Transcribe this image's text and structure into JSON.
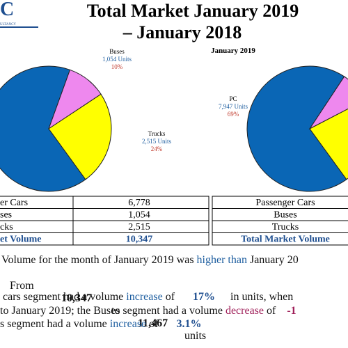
{
  "header": {
    "logo_text": "C",
    "logo_subtext": "ULTANCY",
    "title_line1": "Total Market January 2019",
    "title_line2": "– January 2018"
  },
  "chart_data": [
    {
      "type": "pie",
      "categories": [
        null,
        "Buses",
        "Trucks"
      ],
      "values": [
        6778,
        1054,
        2515
      ],
      "value_labels": [
        null,
        "1,054 Units",
        "2,515 Units"
      ],
      "percent_labels": [
        null,
        "10%",
        "24%"
      ],
      "colors": [
        "#0a66b5",
        "#ee88ee",
        "#ffff00"
      ]
    },
    {
      "type": "pie",
      "title": "January 2019",
      "categories": [
        "PC",
        null,
        null
      ],
      "values": [
        7947,
        927,
        2593
      ],
      "value_labels": [
        "7,947 Units",
        null,
        null
      ],
      "percent_labels": [
        "69%",
        null,
        null
      ],
      "colors": [
        "#0a66b5",
        "#ee88ee",
        "#ffff00"
      ]
    }
  ],
  "tables": [
    {
      "rows": [
        [
          "er Cars",
          "6,778"
        ],
        [
          "ses",
          "1,054"
        ],
        [
          "cks",
          "2,515"
        ],
        [
          "et Volume",
          "10,347"
        ]
      ]
    },
    {
      "rows": [
        [
          "Passenger Cars"
        ],
        [
          "Buses"
        ],
        [
          "Trucks"
        ],
        [
          "Total Market Volume"
        ]
      ]
    }
  ],
  "text": {
    "line1": [
      "Volume for the month of January 2019 was ",
      "higher than",
      " January 20"
    ],
    "line2": [
      "From",
      "10,347",
      "to",
      "11,467",
      "units"
    ],
    "line3": [
      " cars segment had a volume ",
      "increase",
      " of ",
      "17%",
      " in units, when"
    ],
    "line4": [
      "to January 2019; the Buses segment had a volume ",
      "decrease",
      " of ",
      "-1"
    ],
    "line5": [
      "s segment had a volume ",
      "increase",
      " of ",
      "3.1%"
    ]
  }
}
